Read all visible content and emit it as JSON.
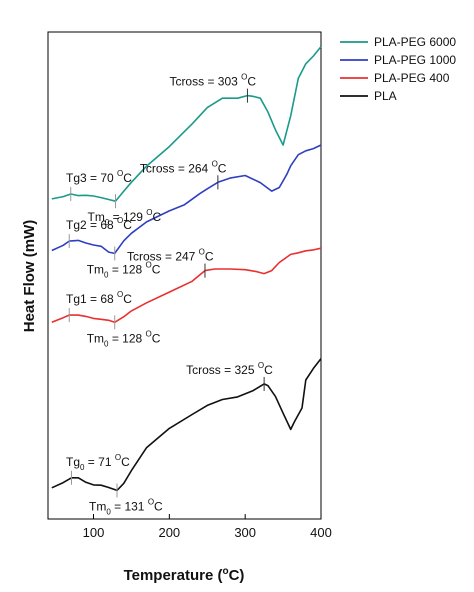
{
  "chart_data": {
    "type": "line",
    "xlabel": "Temperature (°C)",
    "xlabel_main": "Temperature (",
    "xlabel_sup": "o",
    "xlabel_end": "C)",
    "ylabel": "Heat Flow (mW)",
    "xlim": [
      40,
      400
    ],
    "x_ticks": [
      100,
      200,
      300,
      400
    ],
    "y_ticks_shown": false,
    "grid": false,
    "legend_position": "top-right",
    "series": [
      {
        "name": "PLA-PEG 6000",
        "color": "#1a9a8a",
        "points": [
          [
            45,
            2.66
          ],
          [
            60,
            2.73
          ],
          [
            70,
            2.81
          ],
          [
            80,
            2.76
          ],
          [
            90,
            2.77
          ],
          [
            100,
            2.75
          ],
          [
            110,
            2.7
          ],
          [
            120,
            2.64
          ],
          [
            129,
            2.59
          ],
          [
            140,
            2.9
          ],
          [
            150,
            3.17
          ],
          [
            170,
            3.67
          ],
          [
            200,
            4.27
          ],
          [
            230,
            4.97
          ],
          [
            250,
            5.47
          ],
          [
            270,
            5.76
          ],
          [
            290,
            5.76
          ],
          [
            303,
            5.84
          ],
          [
            310,
            5.82
          ],
          [
            320,
            5.76
          ],
          [
            330,
            5.34
          ],
          [
            340,
            4.78
          ],
          [
            350,
            4.32
          ],
          [
            360,
            5.22
          ],
          [
            370,
            6.37
          ],
          [
            380,
            6.82
          ],
          [
            390,
            7.06
          ],
          [
            400,
            7.35
          ]
        ]
      },
      {
        "name": "PLA-PEG 1000",
        "color": "#2f3fc2",
        "points": [
          [
            45,
            1.07
          ],
          [
            60,
            1.23
          ],
          [
            68,
            1.36
          ],
          [
            80,
            1.38
          ],
          [
            90,
            1.3
          ],
          [
            100,
            1.24
          ],
          [
            110,
            1.2
          ],
          [
            120,
            1.02
          ],
          [
            128,
            0.98
          ],
          [
            140,
            1.37
          ],
          [
            150,
            1.6
          ],
          [
            170,
            1.95
          ],
          [
            200,
            2.29
          ],
          [
            220,
            2.48
          ],
          [
            240,
            2.82
          ],
          [
            250,
            2.97
          ],
          [
            264,
            3.17
          ],
          [
            280,
            3.3
          ],
          [
            300,
            3.38
          ],
          [
            320,
            3.16
          ],
          [
            335,
            2.9
          ],
          [
            345,
            3.01
          ],
          [
            355,
            3.42
          ],
          [
            360,
            3.68
          ],
          [
            370,
            4.02
          ],
          [
            380,
            4.14
          ],
          [
            390,
            4.21
          ],
          [
            400,
            4.32
          ]
        ]
      },
      {
        "name": "PLA-PEG 400",
        "color": "#e83030",
        "points": [
          [
            45,
            -1.14
          ],
          [
            60,
            -1.0
          ],
          [
            68,
            -0.92
          ],
          [
            80,
            -0.92
          ],
          [
            90,
            -0.96
          ],
          [
            100,
            -1.02
          ],
          [
            110,
            -1.05
          ],
          [
            120,
            -1.08
          ],
          [
            128,
            -1.14
          ],
          [
            140,
            -0.97
          ],
          [
            150,
            -0.79
          ],
          [
            170,
            -0.54
          ],
          [
            200,
            -0.21
          ],
          [
            230,
            0.12
          ],
          [
            247,
            0.45
          ],
          [
            260,
            0.5
          ],
          [
            280,
            0.5
          ],
          [
            300,
            0.48
          ],
          [
            315,
            0.42
          ],
          [
            325,
            0.36
          ],
          [
            335,
            0.45
          ],
          [
            345,
            0.7
          ],
          [
            360,
            0.95
          ],
          [
            370,
            1.0
          ],
          [
            380,
            1.06
          ],
          [
            390,
            1.09
          ],
          [
            400,
            1.14
          ]
        ]
      },
      {
        "name": "PLA",
        "color": "#111111",
        "points": [
          [
            45,
            -6.24
          ],
          [
            60,
            -6.08
          ],
          [
            71,
            -5.93
          ],
          [
            80,
            -5.93
          ],
          [
            90,
            -6.07
          ],
          [
            100,
            -6.15
          ],
          [
            110,
            -6.16
          ],
          [
            120,
            -6.23
          ],
          [
            131,
            -6.32
          ],
          [
            140,
            -6.1
          ],
          [
            150,
            -5.71
          ],
          [
            170,
            -5.0
          ],
          [
            200,
            -4.41
          ],
          [
            230,
            -3.98
          ],
          [
            250,
            -3.7
          ],
          [
            270,
            -3.52
          ],
          [
            290,
            -3.44
          ],
          [
            310,
            -3.25
          ],
          [
            325,
            -3.04
          ],
          [
            330,
            -3.09
          ],
          [
            340,
            -3.43
          ],
          [
            350,
            -3.94
          ],
          [
            360,
            -4.44
          ],
          [
            365,
            -4.2
          ],
          [
            375,
            -3.78
          ],
          [
            380,
            -2.92
          ],
          [
            390,
            -2.56
          ],
          [
            400,
            -2.26
          ]
        ]
      }
    ],
    "annotations": [
      {
        "series": 0,
        "type": "tg",
        "main": "Tg3 = 70 ",
        "sup": "O",
        "tail": "C",
        "x": 70
      },
      {
        "series": 0,
        "type": "tm",
        "main": "Tm",
        "sub": "0",
        "mid": " = 129 ",
        "sup": "O",
        "tail": "C",
        "x": 129
      },
      {
        "series": 0,
        "type": "tcross",
        "main": "Tcross = 303 ",
        "sup": "O",
        "tail": "C",
        "x": 303
      },
      {
        "series": 1,
        "type": "tg",
        "main": "Tg2 = 68 ",
        "sup": "O",
        "tail": "C",
        "x": 68
      },
      {
        "series": 1,
        "type": "tm",
        "main": "Tm",
        "sub": "0",
        "mid": " = 128 ",
        "sup": "O",
        "tail": "C",
        "x": 128
      },
      {
        "series": 1,
        "type": "tcross",
        "main": "Tcross = 264 ",
        "sup": "O",
        "tail": "C",
        "x": 264
      },
      {
        "series": 2,
        "type": "tg",
        "main": "Tg1 = 68 ",
        "sup": "O",
        "tail": "C",
        "x": 68
      },
      {
        "series": 2,
        "type": "tm",
        "main": "Tm",
        "sub": "0",
        "mid": " = 128 ",
        "sup": "O",
        "tail": "C",
        "x": 128
      },
      {
        "series": 2,
        "type": "tcross",
        "main": "Tcross = 247 ",
        "sup": "O",
        "tail": "C",
        "x": 247
      },
      {
        "series": 3,
        "type": "tg",
        "main": "Tg",
        "sub": "0",
        "mid": " = 71 ",
        "sup": "O",
        "tail": "C",
        "x": 71
      },
      {
        "series": 3,
        "type": "tm",
        "main": "Tm",
        "sub": "0",
        "mid": " = 131 ",
        "sup": "O",
        "tail": "C",
        "x": 131
      },
      {
        "series": 3,
        "type": "tcross",
        "main": "Tcross = 325 ",
        "sup": "O",
        "tail": "C",
        "x": 325
      }
    ]
  }
}
